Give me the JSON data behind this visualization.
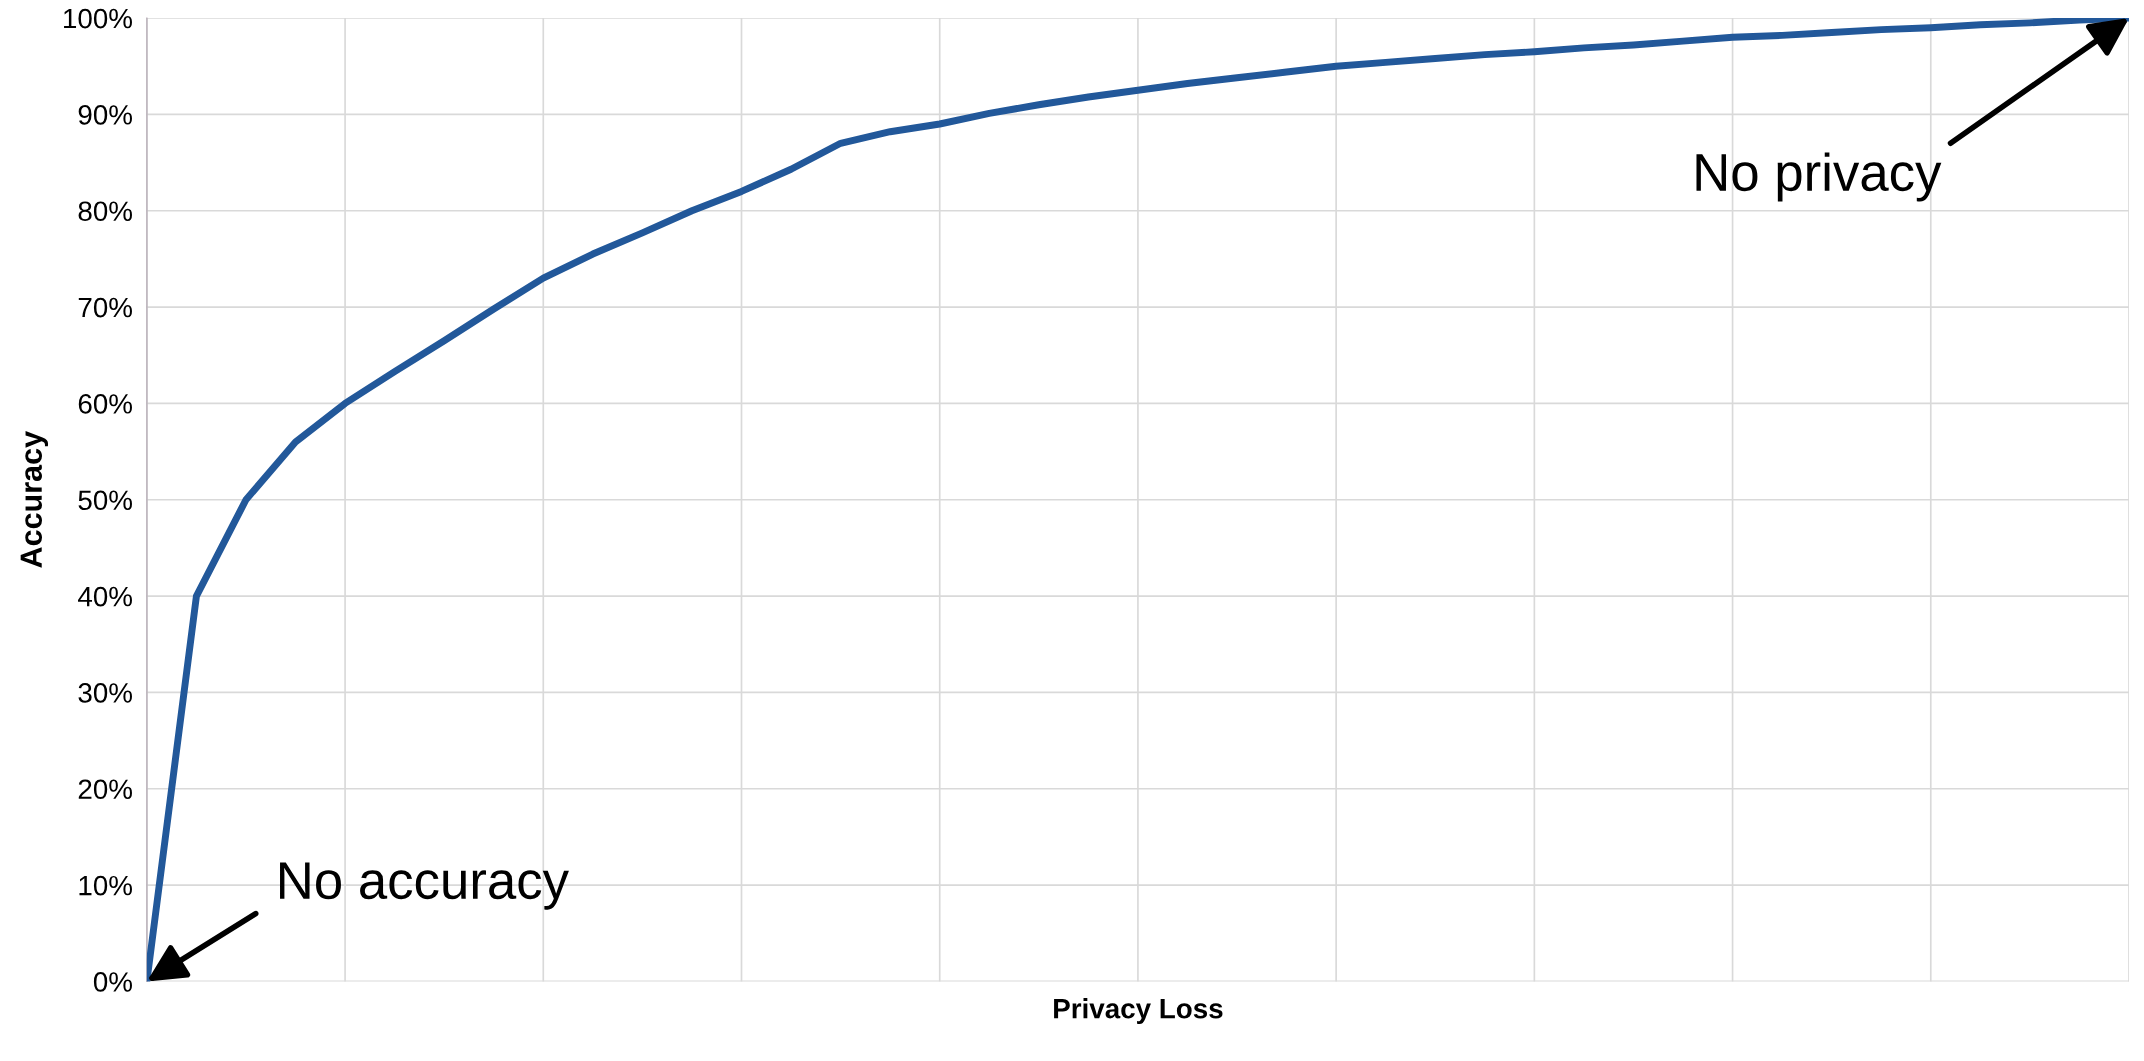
{
  "chart_data": {
    "type": "line",
    "xlabel": "Privacy Loss",
    "ylabel": "Accuracy",
    "categories": [
      null,
      null,
      null,
      null,
      null,
      null,
      null,
      null,
      null,
      null,
      null,
      null,
      null,
      null,
      null,
      null,
      null,
      null,
      null,
      null,
      null,
      null,
      null,
      null,
      null,
      null,
      null,
      null,
      null,
      null,
      null,
      null,
      null,
      null,
      null,
      null,
      null,
      null,
      null,
      null,
      null
    ],
    "series": [
      {
        "color": "#22589a",
        "values": [
          0,
          40,
          50,
          56,
          60,
          63.3,
          66.5,
          69.8,
          73,
          75.5,
          77.7,
          80,
          82,
          84.3,
          87,
          88.2,
          89,
          90.1,
          91,
          91.8,
          92.5,
          93.2,
          93.8,
          94.4,
          95,
          95.4,
          95.8,
          96.2,
          96.5,
          96.9,
          97.2,
          97.6,
          98,
          98.2,
          98.5,
          98.8,
          99,
          99.3,
          99.5,
          99.8,
          100
        ]
      }
    ],
    "ylim": [
      0,
      100
    ],
    "yticks": [
      {
        "value": 0,
        "label": "0%"
      },
      {
        "value": 10,
        "label": "10%"
      },
      {
        "value": 20,
        "label": "20%"
      },
      {
        "value": 30,
        "label": "30%"
      },
      {
        "value": 40,
        "label": "40%"
      },
      {
        "value": 50,
        "label": "50%"
      },
      {
        "value": 60,
        "label": "60%"
      },
      {
        "value": 70,
        "label": "70%"
      },
      {
        "value": 80,
        "label": "80%"
      },
      {
        "value": 90,
        "label": "90%"
      },
      {
        "value": 100,
        "label": "100%"
      }
    ],
    "grid": true,
    "legend": false,
    "marker": "none",
    "line_style": "solid",
    "tick_labels": "y",
    "annotations": [
      "No accuracy",
      "No privacy"
    ]
  }
}
